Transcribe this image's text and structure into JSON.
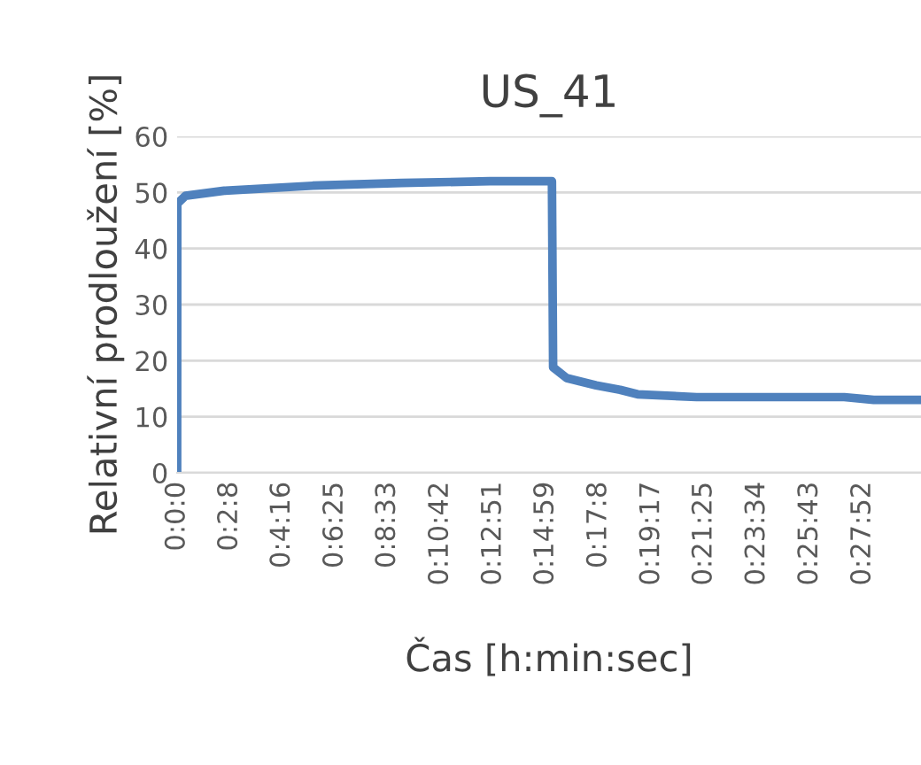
{
  "chart_data": {
    "type": "line",
    "title": "US_41",
    "xlabel": "Čas [h:min:sec]",
    "ylabel": "Relativní prodloužení [%]",
    "x": [
      0,
      0.0001,
      0.0056,
      0.0319,
      0.0919,
      0.1519,
      0.2119,
      0.2539,
      0.2547,
      0.2639,
      0.2839,
      0.3,
      0.3119,
      0.3519,
      0.4519,
      0.4719,
      0.5039
    ],
    "series": [
      {
        "color": "#4f81bd",
        "values": [
          0,
          48.0,
          49.4,
          50.3,
          51.2,
          51.7,
          52.0,
          52.0,
          18.8,
          16.9,
          15.6,
          14.8,
          14.0,
          13.5,
          13.5,
          13.0,
          13.0
        ]
      }
    ],
    "xlim": [
      0,
      0.5039
    ],
    "xticks": [
      {
        "value": 0,
        "label": "0:0:0"
      },
      {
        "value": 0.03556,
        "label": "0:2:8"
      },
      {
        "value": 0.07111,
        "label": "0:4:16"
      },
      {
        "value": 0.10694,
        "label": "0:6:25"
      },
      {
        "value": 0.1425,
        "label": "0:8:33"
      },
      {
        "value": 0.17833,
        "label": "0:10:42"
      },
      {
        "value": 0.21417,
        "label": "0:12:51"
      },
      {
        "value": 0.24972,
        "label": "0:14:59"
      },
      {
        "value": 0.28556,
        "label": "0:17:8"
      },
      {
        "value": 0.32139,
        "label": "0:19:17"
      },
      {
        "value": 0.35694,
        "label": "0:21:25"
      },
      {
        "value": 0.39278,
        "label": "0:23:34"
      },
      {
        "value": 0.42861,
        "label": "0:25:43"
      },
      {
        "value": 0.46444,
        "label": "0:27:52"
      }
    ],
    "ylim": [
      0,
      60
    ],
    "yticks": [
      0,
      10,
      20,
      30,
      40,
      50,
      60
    ],
    "grid": "y",
    "marker": "none",
    "line_style": "solid",
    "legend": false
  }
}
